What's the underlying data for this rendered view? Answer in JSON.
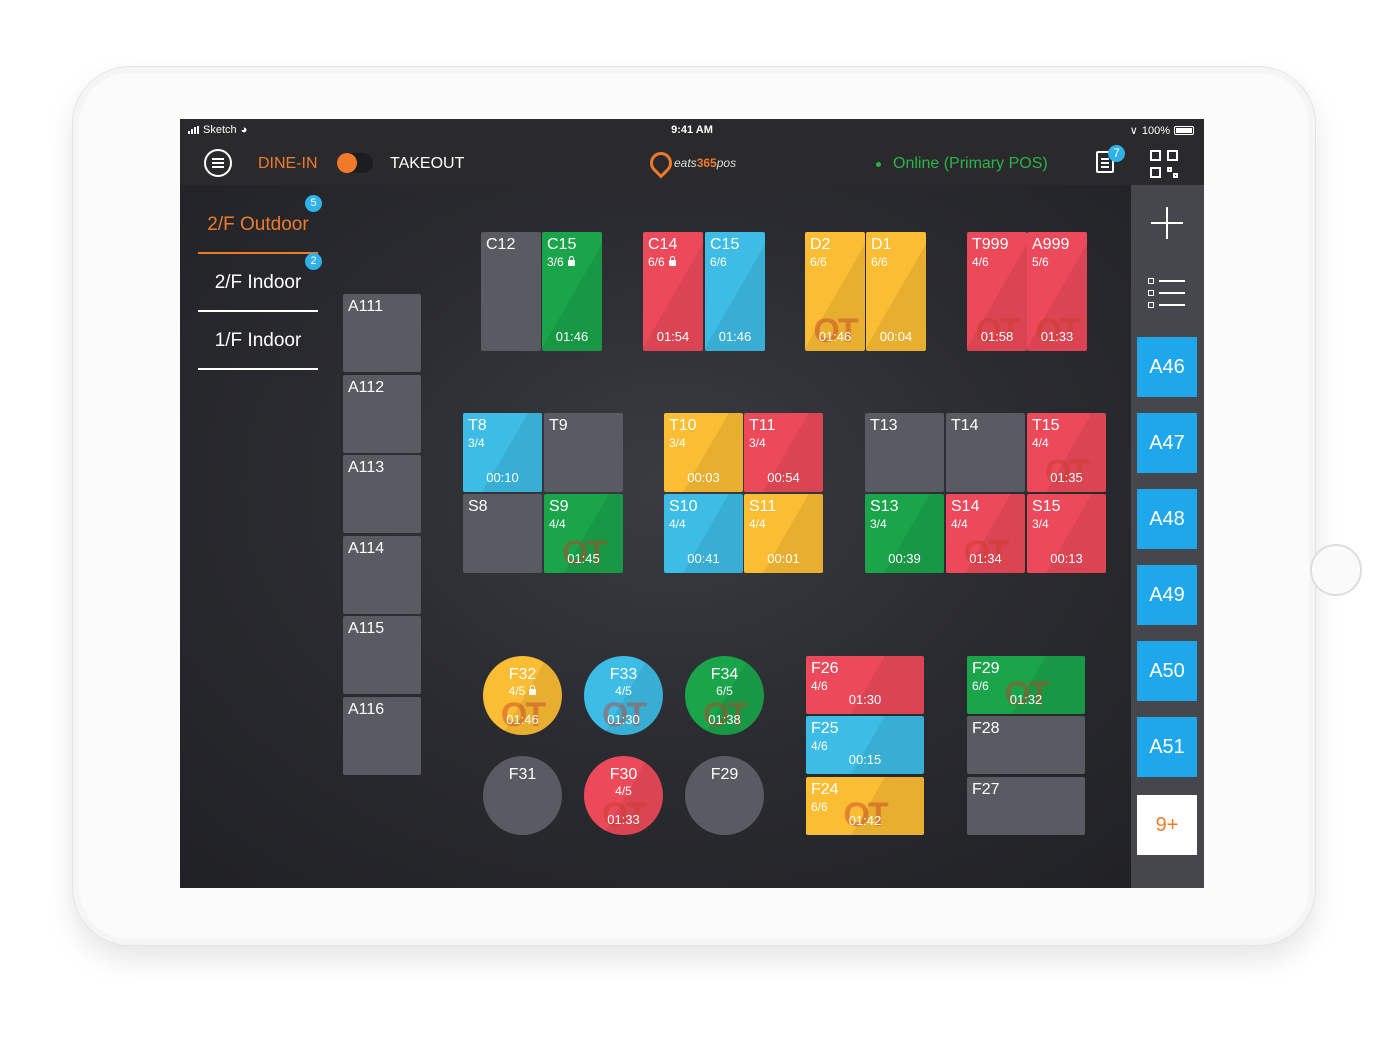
{
  "status_bar": {
    "carrier": "Sketch",
    "time": "9:41 AM",
    "battery": "100%"
  },
  "top_bar": {
    "dine_in": "DINE-IN",
    "takeout": "TAKEOUT",
    "logo_eats": "eats",
    "logo_365": "365",
    "logo_pos": "pos",
    "online_status": "Online (Primary POS)",
    "orders_badge": "7"
  },
  "floors": [
    {
      "label": "2/F Outdoor",
      "badge": "5",
      "active": true
    },
    {
      "label": "2/F Indoor",
      "badge": "2",
      "active": false
    },
    {
      "label": "1/F Indoor",
      "badge": "",
      "active": false
    }
  ],
  "tables": [
    {
      "name": "A111",
      "seats": "",
      "time": "",
      "color": "gray",
      "ot": false
    },
    {
      "name": "A112",
      "seats": "",
      "time": "",
      "color": "gray",
      "ot": false
    },
    {
      "name": "A113",
      "seats": "",
      "time": "",
      "color": "gray",
      "ot": false
    },
    {
      "name": "A114",
      "seats": "",
      "time": "",
      "color": "gray",
      "ot": false
    },
    {
      "name": "A115",
      "seats": "",
      "time": "",
      "color": "gray",
      "ot": false
    },
    {
      "name": "A116",
      "seats": "",
      "time": "",
      "color": "gray",
      "ot": false
    },
    {
      "name": "C12",
      "seats": "",
      "time": "",
      "color": "gray",
      "ot": false
    },
    {
      "name": "C15",
      "seats": "3/6",
      "time": "01:46",
      "color": "green",
      "ot": false,
      "locked": true
    },
    {
      "name": "C14",
      "seats": "6/6",
      "time": "01:54",
      "color": "red",
      "ot": false,
      "locked": true
    },
    {
      "name": "C15",
      "seats": "6/6",
      "time": "01:46",
      "color": "blue",
      "ot": false
    },
    {
      "name": "D2",
      "seats": "6/6",
      "time": "01:46",
      "color": "yellow",
      "ot": true
    },
    {
      "name": "D1",
      "seats": "6/6",
      "time": "00:04",
      "color": "yellow",
      "ot": false
    },
    {
      "name": "T999",
      "seats": "4/6",
      "time": "01:58",
      "color": "red",
      "ot": true
    },
    {
      "name": "A999",
      "seats": "5/6",
      "time": "01:33",
      "color": "red",
      "ot": true
    },
    {
      "name": "T8",
      "seats": "3/4",
      "time": "00:10",
      "color": "blue",
      "ot": false
    },
    {
      "name": "T9",
      "seats": "",
      "time": "",
      "color": "gray",
      "ot": false
    },
    {
      "name": "S8",
      "seats": "",
      "time": "",
      "color": "gray",
      "ot": false
    },
    {
      "name": "S9",
      "seats": "4/4",
      "time": "01:45",
      "color": "green",
      "ot": true
    },
    {
      "name": "T10",
      "seats": "3/4",
      "time": "00:03",
      "color": "yellow",
      "ot": false
    },
    {
      "name": "T11",
      "seats": "3/4",
      "time": "00:54",
      "color": "red",
      "ot": false
    },
    {
      "name": "S10",
      "seats": "4/4",
      "time": "00:41",
      "color": "blue",
      "ot": false
    },
    {
      "name": "S11",
      "seats": "4/4",
      "time": "00:01",
      "color": "yellow",
      "ot": false
    },
    {
      "name": "T13",
      "seats": "",
      "time": "",
      "color": "gray",
      "ot": false
    },
    {
      "name": "T14",
      "seats": "",
      "time": "",
      "color": "gray",
      "ot": false
    },
    {
      "name": "T15",
      "seats": "4/4",
      "time": "01:35",
      "color": "red",
      "ot": true
    },
    {
      "name": "S13",
      "seats": "3/4",
      "time": "00:39",
      "color": "green",
      "ot": false
    },
    {
      "name": "S14",
      "seats": "4/4",
      "time": "01:34",
      "color": "red",
      "ot": true
    },
    {
      "name": "S15",
      "seats": "3/4",
      "time": "00:13",
      "color": "red",
      "ot": false
    },
    {
      "name": "F32",
      "seats": "4/5",
      "time": "01:46",
      "color": "yellow",
      "ot": true,
      "round": true,
      "locked": true
    },
    {
      "name": "F33",
      "seats": "4/5",
      "time": "01:30",
      "color": "blue",
      "ot": true,
      "round": true
    },
    {
      "name": "F34",
      "seats": "6/5",
      "time": "01:38",
      "color": "green",
      "ot": true,
      "round": true
    },
    {
      "name": "F31",
      "seats": "",
      "time": "",
      "color": "gray",
      "ot": false,
      "round": true
    },
    {
      "name": "F30",
      "seats": "4/5",
      "time": "01:33",
      "color": "red",
      "ot": true,
      "round": true
    },
    {
      "name": "F29",
      "seats": "",
      "time": "",
      "color": "gray",
      "ot": false,
      "round": true
    },
    {
      "name": "F26",
      "seats": "4/6",
      "time": "01:30",
      "color": "red",
      "ot": false
    },
    {
      "name": "F25",
      "seats": "4/6",
      "time": "00:15",
      "color": "blue",
      "ot": false
    },
    {
      "name": "F24",
      "seats": "6/6",
      "time": "01:42",
      "color": "yellow",
      "ot": true
    },
    {
      "name": "F29",
      "seats": "6/6",
      "time": "01:32",
      "color": "green",
      "ot": true
    },
    {
      "name": "F28",
      "seats": "",
      "time": "",
      "color": "gray",
      "ot": false
    },
    {
      "name": "F27",
      "seats": "",
      "time": "",
      "color": "gray",
      "ot": false
    }
  ],
  "ot_label": "OT",
  "queue": [
    "A46",
    "A47",
    "A48",
    "A49",
    "A50",
    "A51"
  ],
  "queue_more": "9+"
}
